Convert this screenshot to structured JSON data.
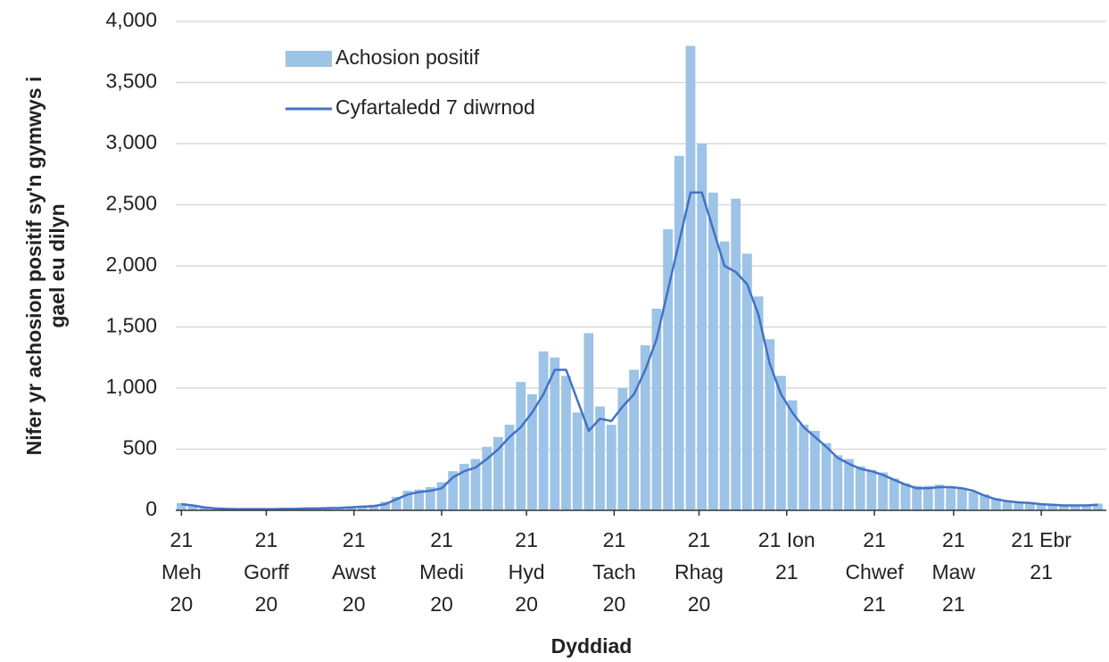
{
  "chart_data": {
    "type": "bar-line",
    "x_label": "Dyddiad",
    "y_label": "Nifer yr achosion positif sy'n gymwys i\ngael eu dilyn",
    "x": [
      "2020-06-21",
      "2020-06-25",
      "2020-06-29",
      "2020-07-03",
      "2020-07-07",
      "2020-07-11",
      "2020-07-15",
      "2020-07-19",
      "2020-07-23",
      "2020-07-27",
      "2020-07-31",
      "2020-08-04",
      "2020-08-08",
      "2020-08-12",
      "2020-08-16",
      "2020-08-20",
      "2020-08-24",
      "2020-08-28",
      "2020-09-01",
      "2020-09-05",
      "2020-09-09",
      "2020-09-13",
      "2020-09-17",
      "2020-09-21",
      "2020-09-25",
      "2020-09-29",
      "2020-10-03",
      "2020-10-07",
      "2020-10-11",
      "2020-10-15",
      "2020-10-19",
      "2020-10-23",
      "2020-10-27",
      "2020-10-31",
      "2020-11-04",
      "2020-11-08",
      "2020-11-12",
      "2020-11-16",
      "2020-11-20",
      "2020-11-24",
      "2020-11-28",
      "2020-12-02",
      "2020-12-06",
      "2020-12-10",
      "2020-12-14",
      "2020-12-18",
      "2020-12-22",
      "2020-12-26",
      "2020-12-30",
      "2021-01-03",
      "2021-01-07",
      "2021-01-11",
      "2021-01-15",
      "2021-01-19",
      "2021-01-23",
      "2021-01-27",
      "2021-01-31",
      "2021-02-04",
      "2021-02-08",
      "2021-02-12",
      "2021-02-16",
      "2021-02-20",
      "2021-02-24",
      "2021-02-28",
      "2021-03-04",
      "2021-03-08",
      "2021-03-12",
      "2021-03-16",
      "2021-03-20",
      "2021-03-24",
      "2021-03-28",
      "2021-04-01",
      "2021-04-05",
      "2021-04-09",
      "2021-04-13",
      "2021-04-17",
      "2021-04-21",
      "2021-04-25",
      "2021-04-29",
      "2021-05-03",
      "2021-05-07",
      "2021-05-11"
    ],
    "series": [
      {
        "name": "Achosion positif",
        "kind": "bar",
        "color": "#9dc3e6",
        "values": [
          60,
          45,
          20,
          18,
          10,
          12,
          8,
          12,
          10,
          15,
          10,
          18,
          14,
          22,
          20,
          30,
          35,
          45,
          70,
          110,
          160,
          170,
          190,
          230,
          320,
          380,
          420,
          520,
          600,
          700,
          1050,
          950,
          1300,
          1250,
          1100,
          800,
          1450,
          850,
          700,
          1000,
          1150,
          1350,
          1650,
          2300,
          2900,
          3800,
          3000,
          2600,
          2200,
          2550,
          2100,
          1750,
          1400,
          1100,
          900,
          700,
          650,
          550,
          450,
          420,
          360,
          330,
          310,
          260,
          220,
          200,
          200,
          210,
          190,
          185,
          150,
          130,
          100,
          80,
          70,
          65,
          55,
          50,
          45,
          45,
          40,
          55
        ]
      },
      {
        "name": "Cyfartaledd 7 diwrnod",
        "kind": "line",
        "color": "#4472c4",
        "values": [
          50,
          40,
          25,
          15,
          12,
          10,
          10,
          10,
          10,
          12,
          12,
          15,
          15,
          18,
          20,
          25,
          30,
          35,
          50,
          90,
          130,
          150,
          160,
          180,
          270,
          320,
          350,
          420,
          500,
          600,
          680,
          800,
          950,
          1150,
          1150,
          900,
          650,
          750,
          730,
          850,
          950,
          1150,
          1400,
          1800,
          2200,
          2600,
          2600,
          2300,
          2000,
          1950,
          1850,
          1600,
          1200,
          950,
          800,
          680,
          600,
          520,
          430,
          380,
          340,
          320,
          290,
          250,
          210,
          180,
          180,
          190,
          190,
          180,
          160,
          120,
          90,
          75,
          65,
          60,
          50,
          45,
          40,
          40,
          40,
          45
        ]
      }
    ],
    "xlim": [
      "2020-06-19",
      "2021-05-14"
    ],
    "xticks": [
      {
        "value": "2020-06-21",
        "label": "21\nMeh\n20"
      },
      {
        "value": "2020-07-21",
        "label": "21\nGorff\n20"
      },
      {
        "value": "2020-08-21",
        "label": "21\nAwst\n20"
      },
      {
        "value": "2020-09-21",
        "label": "21\nMedi\n20"
      },
      {
        "value": "2020-10-21",
        "label": "21\nHyd\n20"
      },
      {
        "value": "2020-11-21",
        "label": "21\nTach\n20"
      },
      {
        "value": "2020-12-21",
        "label": "21\nRhag\n20"
      },
      {
        "value": "2021-01-21",
        "label": "21 Ion\n21"
      },
      {
        "value": "2021-02-21",
        "label": "21\nChwef\n21"
      },
      {
        "value": "2021-03-21",
        "label": "21\nMaw\n21"
      },
      {
        "value": "2021-04-21",
        "label": "21 Ebr\n21"
      }
    ],
    "ylim": [
      0,
      4000
    ],
    "yticks": [
      0,
      500,
      {
        "value": 1000,
        "label": "1,000"
      },
      {
        "value": 1500,
        "label": "1,500"
      },
      {
        "value": 2000,
        "label": "2,000"
      },
      {
        "value": 2500,
        "label": "2,500"
      },
      {
        "value": 3000,
        "label": "3,000"
      },
      {
        "value": 3500,
        "label": "3,500"
      },
      {
        "value": 4000,
        "label": "4,000"
      }
    ],
    "grid": true,
    "legend": "top-left"
  }
}
